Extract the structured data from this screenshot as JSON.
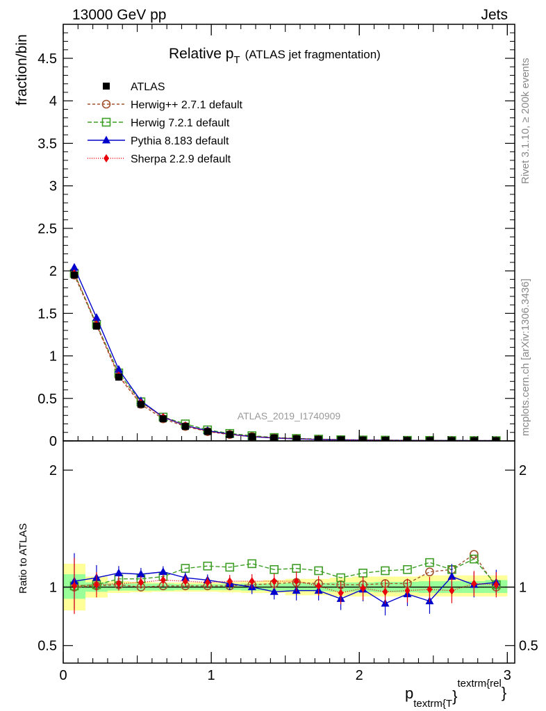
{
  "header": {
    "left": "13000 GeV pp",
    "right": "Jets"
  },
  "side_text": {
    "rivet": "Rivet 3.1.10, ≥ 200k events",
    "mcplots": "mcplots.cern.ch [arXiv:1306.3436]"
  },
  "chart_data": {
    "type": "line",
    "title_main": "Relative p",
    "title_sub": "T",
    "title_rest": "(ATLAS jet fragmentation)",
    "analysis_label": "ATLAS_2019_I1740909",
    "ylabel": "fraction/bin",
    "ratio_ylabel": "Ratio to ATLAS",
    "xlabel_main": "p",
    "xlabel_sub": "textrm{T",
    "xlabel_brace": "}",
    "xlabel_sup": "textrm{rel",
    "xlabel_close": "}",
    "xlim": [
      0,
      3.05
    ],
    "ylim": [
      0,
      4.9
    ],
    "ratio_ylim": [
      0.35,
      2.25
    ],
    "y_ticks": [
      0,
      0.5,
      1,
      1.5,
      2,
      2.5,
      3,
      3.5,
      4,
      4.5
    ],
    "y_tick_labels": [
      "0",
      "0.5",
      "1",
      "1.5",
      "2",
      "2.5",
      "3",
      "3.5",
      "4",
      "4.5"
    ],
    "ratio_ticks": [
      0.5,
      1,
      2
    ],
    "ratio_tick_labels": [
      "0.5",
      "1",
      "2"
    ],
    "x_ticks": [
      0,
      1,
      2,
      3
    ],
    "x_tick_labels": [
      "0",
      "1",
      "2",
      "3"
    ],
    "x": [
      0.075,
      0.225,
      0.375,
      0.525,
      0.675,
      0.825,
      0.975,
      1.125,
      1.275,
      1.425,
      1.575,
      1.725,
      1.875,
      2.025,
      2.175,
      2.325,
      2.475,
      2.625,
      2.775,
      2.925
    ],
    "bin_edges": [
      0,
      0.15,
      0.3,
      0.45,
      0.6,
      0.75,
      0.9,
      1.05,
      1.2,
      1.35,
      1.5,
      1.65,
      1.8,
      1.95,
      2.1,
      2.25,
      2.4,
      2.55,
      2.7,
      2.85,
      3.0
    ],
    "data": {
      "name": "ATLAS",
      "values": [
        1.95,
        1.35,
        0.75,
        0.43,
        0.26,
        0.17,
        0.11,
        0.075,
        0.05,
        0.035,
        0.025,
        0.018,
        0.013,
        0.01,
        0.008,
        0.006,
        0.005,
        0.004,
        0.003,
        0.003
      ]
    },
    "band_green": [
      [
        0.9,
        1.11
      ],
      [
        0.96,
        1.04
      ],
      [
        0.97,
        1.03
      ],
      [
        0.97,
        1.03
      ],
      [
        0.97,
        1.03
      ],
      [
        0.975,
        1.025
      ],
      [
        0.975,
        1.025
      ],
      [
        0.975,
        1.025
      ],
      [
        0.97,
        1.03
      ],
      [
        0.97,
        1.03
      ],
      [
        0.965,
        1.035
      ],
      [
        0.965,
        1.035
      ],
      [
        0.96,
        1.04
      ],
      [
        0.96,
        1.04
      ],
      [
        0.955,
        1.045
      ],
      [
        0.955,
        1.045
      ],
      [
        0.95,
        1.05
      ],
      [
        0.95,
        1.05
      ],
      [
        0.95,
        1.05
      ],
      [
        0.95,
        1.06
      ]
    ],
    "band_yellow": [
      [
        0.8,
        1.2
      ],
      [
        0.91,
        1.09
      ],
      [
        0.95,
        1.05
      ],
      [
        0.955,
        1.045
      ],
      [
        0.96,
        1.04
      ],
      [
        0.96,
        1.04
      ],
      [
        0.96,
        1.04
      ],
      [
        0.955,
        1.045
      ],
      [
        0.95,
        1.05
      ],
      [
        0.95,
        1.06
      ],
      [
        0.93,
        1.07
      ],
      [
        0.93,
        1.07
      ],
      [
        0.92,
        1.08
      ],
      [
        0.92,
        1.09
      ],
      [
        0.92,
        1.09
      ],
      [
        0.92,
        1.09
      ],
      [
        0.92,
        1.1
      ],
      [
        0.92,
        1.1
      ],
      [
        0.92,
        1.1
      ],
      [
        0.92,
        1.1
      ]
    ],
    "series": [
      {
        "name": "Herwig++ 2.7.1 default",
        "color": "#a0522d",
        "dash": "4,3",
        "marker": "circle-open",
        "values": [
          1.95,
          1.36,
          0.76,
          0.43,
          0.26,
          0.17,
          0.11,
          0.075,
          0.051,
          0.036,
          0.026,
          0.019,
          0.013,
          0.0102,
          0.0082,
          0.0062,
          0.0057,
          0.0046,
          0.0037,
          0.003
        ],
        "ratio": [
          1.0,
          1.01,
          1.02,
          1.0,
          1.01,
          1.01,
          1.01,
          1.01,
          1.02,
          1.03,
          1.04,
          1.03,
          1.02,
          1.02,
          1.03,
          1.03,
          1.13,
          1.15,
          1.28,
          1.0
        ]
      },
      {
        "name": "Herwig 7.2.1 default",
        "color": "#3c9d23",
        "dash": "6,3",
        "marker": "square-open",
        "values": [
          1.97,
          1.37,
          0.8,
          0.46,
          0.28,
          0.2,
          0.13,
          0.088,
          0.061,
          0.04,
          0.029,
          0.021,
          0.014,
          0.011,
          0.0092,
          0.007,
          0.0062,
          0.0046,
          0.0037,
          0.003
        ],
        "ratio": [
          1.01,
          1.02,
          1.07,
          1.07,
          1.09,
          1.16,
          1.18,
          1.17,
          1.2,
          1.15,
          1.16,
          1.14,
          1.08,
          1.12,
          1.14,
          1.15,
          1.21,
          1.15,
          1.24,
          1.02
        ]
      },
      {
        "name": "Pythia 8.183 default",
        "color": "#0000cc",
        "dash": "",
        "marker": "triangle",
        "values": [
          2.04,
          1.45,
          0.84,
          0.47,
          0.28,
          0.18,
          0.12,
          0.079,
          0.05,
          0.034,
          0.024,
          0.017,
          0.012,
          0.0098,
          0.0069,
          0.0053,
          0.0044,
          0.0044,
          0.0031,
          0.0031
        ],
        "ratio": [
          1.05,
          1.08,
          1.12,
          1.11,
          1.13,
          1.08,
          1.06,
          1.03,
          1.0,
          0.96,
          0.97,
          0.97,
          0.9,
          0.98,
          0.86,
          0.94,
          0.88,
          1.09,
          1.02,
          1.04
        ]
      },
      {
        "name": "Sherpa 2.2.9 default",
        "color": "#e8000b",
        "dash": "1,2",
        "marker": "diamond",
        "values": [
          1.97,
          1.37,
          0.77,
          0.45,
          0.28,
          0.18,
          0.11,
          0.078,
          0.052,
          0.036,
          0.026,
          0.018,
          0.0123,
          0.0099,
          0.0076,
          0.0059,
          0.0049,
          0.0039,
          0.0031,
          0.0031
        ],
        "ratio": [
          1.01,
          1.02,
          1.03,
          1.04,
          1.06,
          1.05,
          1.04,
          1.05,
          1.05,
          1.05,
          1.05,
          1.01,
          0.95,
          0.99,
          0.96,
          0.97,
          0.98,
          0.97,
          1.03,
          1.02
        ]
      }
    ],
    "legend": [
      {
        "label": "ATLAS",
        "color": "#000000",
        "dash": "",
        "marker": "square-filled"
      },
      {
        "label": "Herwig++ 2.7.1 default",
        "color": "#a0522d",
        "dash": "4,3",
        "marker": "circle-open"
      },
      {
        "label": "Herwig 7.2.1 default",
        "color": "#3c9d23",
        "dash": "6,3",
        "marker": "square-open"
      },
      {
        "label": "Pythia 8.183 default",
        "color": "#0000cc",
        "dash": "",
        "marker": "triangle"
      },
      {
        "label": "Sherpa 2.2.9 default",
        "color": "#e8000b",
        "dash": "1,2",
        "marker": "diamond"
      }
    ],
    "legend_position": "top-left"
  }
}
